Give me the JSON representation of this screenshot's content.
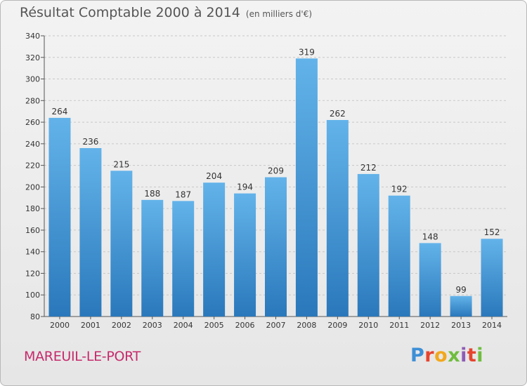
{
  "header": {
    "title": "Résultat Comptable 2000 à 2014",
    "unit": "(en milliers d'€)"
  },
  "footer": {
    "town": "MAREUIL-LE-PORT",
    "logo": "Proxiti"
  },
  "colors": {
    "bar_light": "#63b3ea",
    "bar_dark": "#2a78bb",
    "grid": "#c8c8c8",
    "axis_text": "#333333"
  },
  "chart_data": {
    "type": "bar",
    "title": "Résultat Comptable 2000 à 2014",
    "subtitle": "(en milliers d'€)",
    "xlabel": "",
    "ylabel": "",
    "categories": [
      "2000",
      "2001",
      "2002",
      "2003",
      "2004",
      "2005",
      "2006",
      "2007",
      "2008",
      "2009",
      "2010",
      "2011",
      "2012",
      "2013",
      "2014"
    ],
    "values": [
      264,
      236,
      215,
      188,
      187,
      204,
      194,
      209,
      319,
      262,
      212,
      192,
      148,
      99,
      152
    ],
    "data_labels": [
      "264",
      "236",
      "215",
      "188",
      "187",
      "204",
      "194",
      "209",
      "319",
      "262",
      "212",
      "192",
      "148",
      "99",
      "152"
    ],
    "ylim": [
      80,
      340
    ],
    "yticks": [
      80,
      100,
      120,
      140,
      160,
      180,
      200,
      220,
      240,
      260,
      280,
      300,
      320,
      340
    ],
    "ytick_labels": [
      "80",
      "100",
      "120",
      "140",
      "160",
      "180",
      "200",
      "220",
      "240",
      "260",
      "280",
      "300",
      "320",
      "340"
    ],
    "grid": true,
    "legend": "none"
  }
}
